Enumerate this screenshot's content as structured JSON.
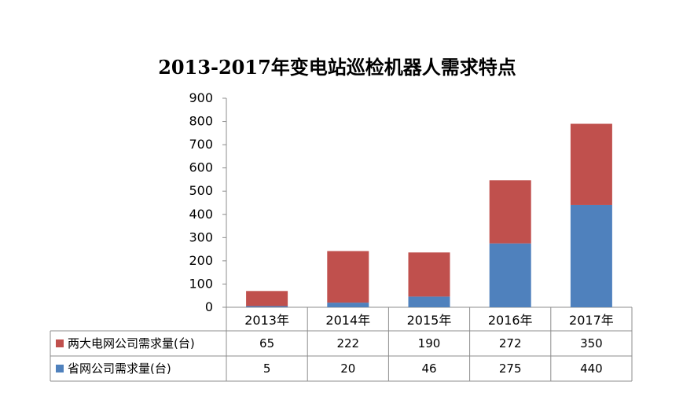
{
  "colors": {
    "series_1": "#C0504D",
    "series_2": "#4F81BD",
    "axis": "#8C8C8C",
    "text": "#000000",
    "background": "#FFFFFF"
  },
  "chart_data": {
    "type": "bar",
    "title": "2013-2017年变电站巡检机器人需求特点",
    "xlabel": "",
    "ylabel": "",
    "ylim": [
      0,
      900
    ],
    "yticks": [
      0,
      100,
      200,
      300,
      400,
      500,
      600,
      700,
      800,
      900
    ],
    "stacked": true,
    "grid": false,
    "legend_placement": "data-table",
    "categories": [
      "2013年",
      "2014年",
      "2015年",
      "2016年",
      "2017年"
    ],
    "series": [
      {
        "name": "两大电网公司需求量(台)",
        "values": [
          65,
          222,
          190,
          272,
          350
        ],
        "color": "#C0504D"
      },
      {
        "name": "省网公司需求量(台)",
        "values": [
          5,
          20,
          46,
          275,
          440
        ],
        "color": "#4F81BD"
      }
    ]
  }
}
